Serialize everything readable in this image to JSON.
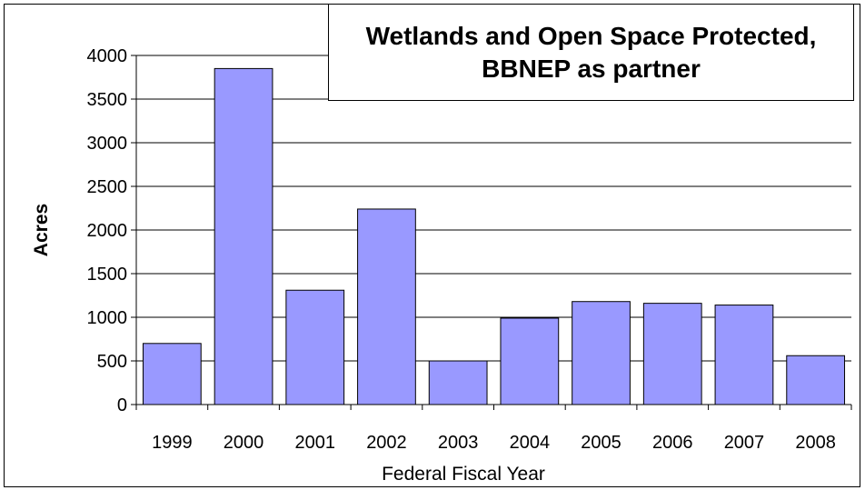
{
  "chart_data": {
    "type": "bar",
    "title_lines": [
      "Wetlands and Open Space Protected,",
      "BBNEP as partner"
    ],
    "xlabel": "Federal Fiscal Year",
    "ylabel": "Acres",
    "categories": [
      "1999",
      "2000",
      "2001",
      "2002",
      "2003",
      "2004",
      "2005",
      "2006",
      "2007",
      "2008"
    ],
    "values": [
      700,
      3850,
      1310,
      2240,
      500,
      990,
      1180,
      1160,
      1140,
      560
    ],
    "ylim": [
      0,
      4000
    ],
    "yticks": [
      "0",
      "500",
      "1000",
      "1500",
      "2000",
      "2500",
      "3000",
      "3500",
      "4000"
    ],
    "grid": true,
    "colors": {
      "bar_fill": "#9999ff",
      "bar_stroke": "#000000",
      "grid": "#000000"
    }
  }
}
